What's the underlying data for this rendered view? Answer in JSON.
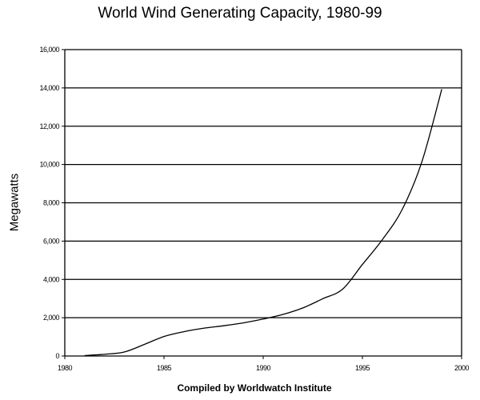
{
  "chart_data": {
    "type": "line",
    "title": "World Wind Generating Capacity, 1980-99",
    "xlabel": "",
    "ylabel": "Megawatts",
    "source": "Compiled by Worldwatch Institute",
    "xlim": [
      1980,
      2000
    ],
    "ylim": [
      0,
      16000
    ],
    "x_ticks": [
      1980,
      1985,
      1990,
      1995,
      2000
    ],
    "x_tick_labels": [
      "1980",
      "1985",
      "1990",
      "1995",
      "2000"
    ],
    "y_ticks": [
      0,
      2000,
      4000,
      6000,
      8000,
      10000,
      12000,
      14000,
      16000
    ],
    "y_tick_labels": [
      "0",
      "2,000",
      "4,000",
      "6,000",
      "8,000",
      "10,000",
      "12,000",
      "14,000",
      "16,000"
    ],
    "grid": "horizontal",
    "legend": "none",
    "series": [
      {
        "name": "World Wind Generating Capacity",
        "x": [
          1981,
          1982,
          1983,
          1984,
          1985,
          1986,
          1987,
          1988,
          1989,
          1990,
          1991,
          1992,
          1993,
          1994,
          1995,
          1996,
          1997,
          1998,
          1999
        ],
        "values": [
          25,
          90,
          210,
          600,
          1020,
          1270,
          1450,
          1580,
          1730,
          1930,
          2170,
          2510,
          2990,
          3490,
          4780,
          6070,
          7640,
          10150,
          13930
        ]
      }
    ]
  }
}
